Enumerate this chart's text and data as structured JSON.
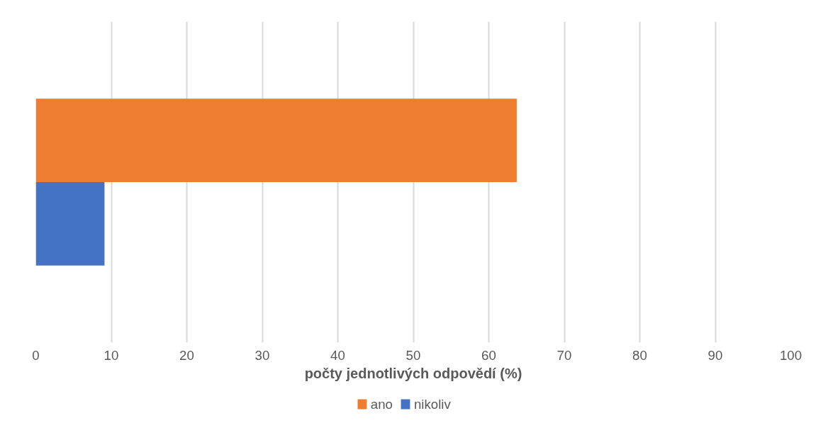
{
  "chart_data": {
    "type": "bar",
    "orientation": "horizontal",
    "categories": [
      null
    ],
    "series": [
      {
        "name": "ano",
        "color": "#ed7d31",
        "values": [
          63.7
        ]
      },
      {
        "name": "nikoliv",
        "color": "#4472c4",
        "values": [
          9.1
        ]
      }
    ],
    "xlabel": "počty jednotlivých odpovědí (%)",
    "xlim": [
      0,
      100
    ],
    "xticks": [
      0,
      10,
      20,
      30,
      40,
      50,
      60,
      70,
      80,
      90,
      100
    ],
    "grid": "x",
    "legend": "bottom",
    "tick_labels": "x"
  }
}
